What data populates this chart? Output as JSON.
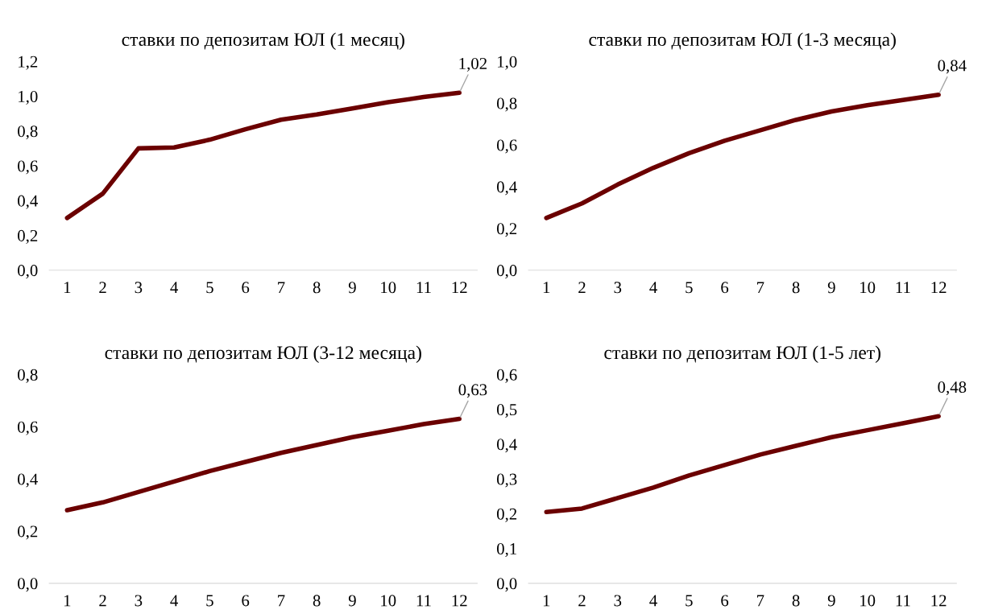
{
  "chart_data": [
    {
      "type": "line",
      "title": "ставки по депозитам ЮЛ (1 месяц)",
      "categories": [
        "1",
        "2",
        "3",
        "4",
        "5",
        "6",
        "7",
        "8",
        "9",
        "10",
        "11",
        "12"
      ],
      "series": [
        {
          "color": "#6b0000",
          "values": [
            0.3,
            0.44,
            0.7,
            0.705,
            0.75,
            0.81,
            0.865,
            0.895,
            0.93,
            0.965,
            0.995,
            1.02
          ],
          "value_labels": [
            null,
            null,
            null,
            null,
            null,
            null,
            null,
            null,
            null,
            null,
            null,
            "1,02"
          ]
        }
      ],
      "ylim": [
        0,
        1.2
      ],
      "yticks": [
        {
          "value": 0,
          "label": "0,0"
        },
        {
          "value": 0.2,
          "label": "0,2"
        },
        {
          "value": 0.4,
          "label": "0,4"
        },
        {
          "value": 0.6,
          "label": "0,6"
        },
        {
          "value": 0.8,
          "label": "0,8"
        },
        {
          "value": 1.0,
          "label": "1,0"
        },
        {
          "value": 1.2,
          "label": "1,2"
        }
      ],
      "grid": false,
      "legend": false
    },
    {
      "type": "line",
      "title": "ставки по депозитам ЮЛ (1-3 месяца)",
      "categories": [
        "1",
        "2",
        "3",
        "4",
        "5",
        "6",
        "7",
        "8",
        "9",
        "10",
        "11",
        "12"
      ],
      "series": [
        {
          "color": "#6b0000",
          "values": [
            0.25,
            0.32,
            0.41,
            0.49,
            0.56,
            0.62,
            0.67,
            0.72,
            0.76,
            0.79,
            0.815,
            0.84
          ],
          "value_labels": [
            null,
            null,
            null,
            null,
            null,
            null,
            null,
            null,
            null,
            null,
            null,
            "0,84"
          ]
        }
      ],
      "ylim": [
        0,
        1.0
      ],
      "yticks": [
        {
          "value": 0,
          "label": "0,0"
        },
        {
          "value": 0.2,
          "label": "0,2"
        },
        {
          "value": 0.4,
          "label": "0,4"
        },
        {
          "value": 0.6,
          "label": "0,6"
        },
        {
          "value": 0.8,
          "label": "0,8"
        },
        {
          "value": 1.0,
          "label": "1,0"
        }
      ],
      "grid": false,
      "legend": false
    },
    {
      "type": "line",
      "title": "ставки по депозитам ЮЛ (3-12 месяца)",
      "categories": [
        "1",
        "2",
        "3",
        "4",
        "5",
        "6",
        "7",
        "8",
        "9",
        "10",
        "11",
        "12"
      ],
      "series": [
        {
          "color": "#6b0000",
          "values": [
            0.28,
            0.31,
            0.35,
            0.39,
            0.43,
            0.465,
            0.5,
            0.53,
            0.56,
            0.585,
            0.61,
            0.63
          ],
          "value_labels": [
            null,
            null,
            null,
            null,
            null,
            null,
            null,
            null,
            null,
            null,
            null,
            "0,63"
          ]
        }
      ],
      "ylim": [
        0,
        0.8
      ],
      "yticks": [
        {
          "value": 0,
          "label": "0,0"
        },
        {
          "value": 0.2,
          "label": "0,2"
        },
        {
          "value": 0.4,
          "label": "0,4"
        },
        {
          "value": 0.6,
          "label": "0,6"
        },
        {
          "value": 0.8,
          "label": "0,8"
        }
      ],
      "grid": false,
      "legend": false
    },
    {
      "type": "line",
      "title": "ставки по депозитам ЮЛ (1-5 лет)",
      "categories": [
        "1",
        "2",
        "3",
        "4",
        "5",
        "6",
        "7",
        "8",
        "9",
        "10",
        "11",
        "12"
      ],
      "series": [
        {
          "color": "#6b0000",
          "values": [
            0.205,
            0.215,
            0.245,
            0.275,
            0.31,
            0.34,
            0.37,
            0.395,
            0.42,
            0.44,
            0.46,
            0.48
          ],
          "value_labels": [
            null,
            null,
            null,
            null,
            null,
            null,
            null,
            null,
            null,
            null,
            null,
            "0,48"
          ]
        }
      ],
      "ylim": [
        0,
        0.6
      ],
      "yticks": [
        {
          "value": 0,
          "label": "0,0"
        },
        {
          "value": 0.1,
          "label": "0,1"
        },
        {
          "value": 0.2,
          "label": "0,2"
        },
        {
          "value": 0.3,
          "label": "0,3"
        },
        {
          "value": 0.4,
          "label": "0,4"
        },
        {
          "value": 0.5,
          "label": "0,5"
        },
        {
          "value": 0.6,
          "label": "0,6"
        }
      ],
      "grid": false,
      "legend": false
    }
  ]
}
